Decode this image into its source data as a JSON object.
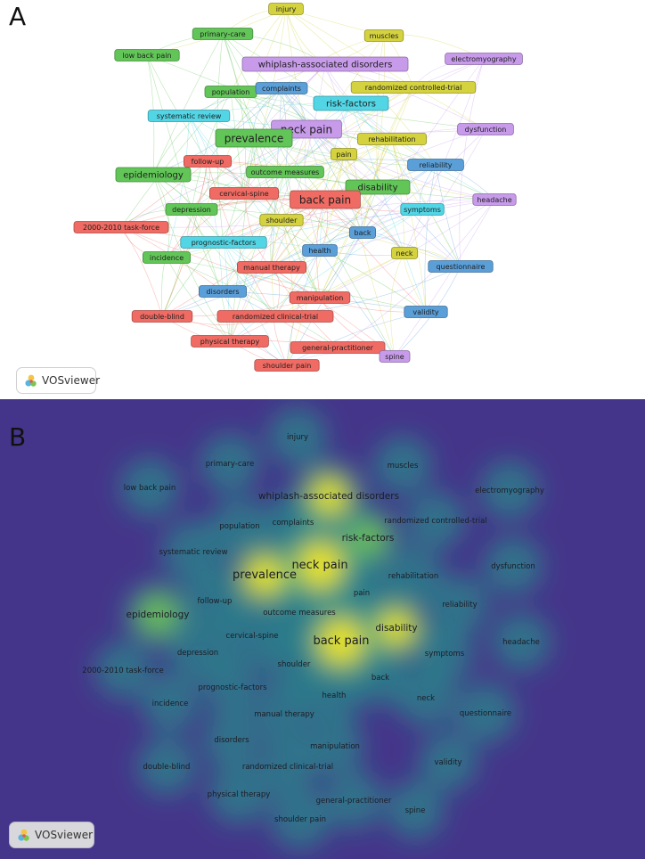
{
  "panel_a": {
    "letter": "A",
    "brand": "VOSviewer"
  },
  "panel_b": {
    "letter": "B",
    "brand": "VOSviewer"
  },
  "colors": {
    "red": "#f06b63",
    "green": "#62c558",
    "blue": "#5b9fd9",
    "yellow": "#d4d23e",
    "purple": "#c79aea",
    "cyan": "#52d6e6"
  },
  "nodes": [
    {
      "id": "injury",
      "label": "injury",
      "cluster": "yellow",
      "size": "s"
    },
    {
      "id": "primary-care",
      "label": "primary-care",
      "cluster": "green",
      "size": "s"
    },
    {
      "id": "muscles",
      "label": "muscles",
      "cluster": "yellow",
      "size": "s"
    },
    {
      "id": "low-back-pain",
      "label": "low back pain",
      "cluster": "green",
      "size": "s"
    },
    {
      "id": "whiplash",
      "label": "whiplash-associated disorders",
      "cluster": "purple",
      "size": "m"
    },
    {
      "id": "electromyography",
      "label": "electromyography",
      "cluster": "purple",
      "size": "s"
    },
    {
      "id": "population",
      "label": "population",
      "cluster": "green",
      "size": "s"
    },
    {
      "id": "complaints",
      "label": "complaints",
      "cluster": "blue",
      "size": "s"
    },
    {
      "id": "rct-controlled",
      "label": "randomized controlled-trial",
      "cluster": "yellow",
      "size": "s"
    },
    {
      "id": "risk-factors",
      "label": "risk-factors",
      "cluster": "cyan",
      "size": "m"
    },
    {
      "id": "systematic-review",
      "label": "systematic review",
      "cluster": "cyan",
      "size": "s"
    },
    {
      "id": "neck-pain",
      "label": "neck pain",
      "cluster": "purple",
      "size": "l"
    },
    {
      "id": "dysfunction",
      "label": "dysfunction",
      "cluster": "purple",
      "size": "s"
    },
    {
      "id": "prevalence",
      "label": "prevalence",
      "cluster": "green",
      "size": "l"
    },
    {
      "id": "rehabilitation",
      "label": "rehabilitation",
      "cluster": "yellow",
      "size": "s"
    },
    {
      "id": "pain",
      "label": "pain",
      "cluster": "yellow",
      "size": "s"
    },
    {
      "id": "follow-up",
      "label": "follow-up",
      "cluster": "red",
      "size": "s"
    },
    {
      "id": "reliability",
      "label": "reliability",
      "cluster": "blue",
      "size": "s"
    },
    {
      "id": "outcome-measures",
      "label": "outcome measures",
      "cluster": "green",
      "size": "s"
    },
    {
      "id": "epidemiology",
      "label": "epidemiology",
      "cluster": "green",
      "size": "m"
    },
    {
      "id": "disability",
      "label": "disability",
      "cluster": "green",
      "size": "m"
    },
    {
      "id": "cervical-spine",
      "label": "cervical-spine",
      "cluster": "red",
      "size": "s"
    },
    {
      "id": "back-pain",
      "label": "back pain",
      "cluster": "red",
      "size": "l"
    },
    {
      "id": "headache",
      "label": "headache",
      "cluster": "purple",
      "size": "s"
    },
    {
      "id": "depression",
      "label": "depression",
      "cluster": "green",
      "size": "s"
    },
    {
      "id": "symptoms",
      "label": "symptoms",
      "cluster": "cyan",
      "size": "s"
    },
    {
      "id": "task-force",
      "label": "2000-2010 task-force",
      "cluster": "red",
      "size": "s"
    },
    {
      "id": "shoulder",
      "label": "shoulder",
      "cluster": "yellow",
      "size": "s"
    },
    {
      "id": "back",
      "label": "back",
      "cluster": "blue",
      "size": "s"
    },
    {
      "id": "prognostic-factors",
      "label": "prognostic-factors",
      "cluster": "cyan",
      "size": "s"
    },
    {
      "id": "health",
      "label": "health",
      "cluster": "blue",
      "size": "s"
    },
    {
      "id": "incidence",
      "label": "incidence",
      "cluster": "green",
      "size": "s"
    },
    {
      "id": "neck",
      "label": "neck",
      "cluster": "yellow",
      "size": "s"
    },
    {
      "id": "manual-therapy",
      "label": "manual therapy",
      "cluster": "red",
      "size": "s"
    },
    {
      "id": "questionnaire",
      "label": "questionnaire",
      "cluster": "blue",
      "size": "s"
    },
    {
      "id": "disorders",
      "label": "disorders",
      "cluster": "blue",
      "size": "s"
    },
    {
      "id": "manipulation",
      "label": "manipulation",
      "cluster": "red",
      "size": "s"
    },
    {
      "id": "double-blind",
      "label": "double-blind",
      "cluster": "red",
      "size": "s"
    },
    {
      "id": "rct-clinical",
      "label": "randomized clinical-trial",
      "cluster": "red",
      "size": "s"
    },
    {
      "id": "validity",
      "label": "validity",
      "cluster": "blue",
      "size": "s"
    },
    {
      "id": "physical-therapy",
      "label": "physical therapy",
      "cluster": "red",
      "size": "s"
    },
    {
      "id": "general-practitioner",
      "label": "general-practitioner",
      "cluster": "red",
      "size": "s"
    },
    {
      "id": "spine",
      "label": "spine",
      "cluster": "purple",
      "size": "s"
    },
    {
      "id": "shoulder-pain",
      "label": "shoulder pain",
      "cluster": "red",
      "size": "s"
    }
  ],
  "density": [
    {
      "id": "neck-pain",
      "v": 1.0
    },
    {
      "id": "back-pain",
      "v": 0.95
    },
    {
      "id": "prevalence",
      "v": 0.7
    },
    {
      "id": "whiplash",
      "v": 0.65
    },
    {
      "id": "disability",
      "v": 0.6
    },
    {
      "id": "epidemiology",
      "v": 0.5
    },
    {
      "id": "risk-factors",
      "v": 0.45
    },
    {
      "id": "systematic-review",
      "v": 0.4
    },
    {
      "id": "follow-up",
      "v": 0.35
    },
    {
      "id": "cervical-spine",
      "v": 0.35
    },
    {
      "id": "questionnaire",
      "v": 0.35
    },
    {
      "id": "symptoms",
      "v": 0.3
    },
    {
      "id": "shoulder-pain",
      "v": 0.35
    },
    {
      "id": "physical-therapy",
      "v": 0.35
    },
    {
      "id": "rct-clinical",
      "v": 0.3
    },
    {
      "id": "double-blind",
      "v": 0.3
    },
    {
      "id": "neck",
      "v": 0.3
    },
    {
      "id": "headache",
      "v": 0.3
    },
    {
      "id": "dysfunction",
      "v": 0.3
    },
    {
      "id": "electromyography",
      "v": 0.3
    },
    {
      "id": "reliability",
      "v": 0.28
    },
    {
      "id": "injury",
      "v": 0.3
    },
    {
      "id": "muscles",
      "v": 0.28
    },
    {
      "id": "primary-care",
      "v": 0.3
    },
    {
      "id": "low-back-pain",
      "v": 0.3
    },
    {
      "id": "depression",
      "v": 0.3
    },
    {
      "id": "task-force",
      "v": 0.25
    },
    {
      "id": "incidence",
      "v": 0.28
    },
    {
      "id": "disorders",
      "v": 0.28
    },
    {
      "id": "validity",
      "v": 0.28
    },
    {
      "id": "spine",
      "v": 0.28
    },
    {
      "id": "general-practitioner",
      "v": 0.28
    },
    {
      "id": "manipulation",
      "v": 0.28
    },
    {
      "id": "manual-therapy",
      "v": 0.3
    },
    {
      "id": "prognostic-factors",
      "v": 0.25
    },
    {
      "id": "population",
      "v": 0.25
    },
    {
      "id": "complaints",
      "v": 0.3
    },
    {
      "id": "rehabilitation",
      "v": 0.3
    },
    {
      "id": "outcome-measures",
      "v": 0.3
    },
    {
      "id": "shoulder",
      "v": 0.3
    },
    {
      "id": "health",
      "v": 0.25
    },
    {
      "id": "back",
      "v": 0.25
    },
    {
      "id": "pain",
      "v": 0.28
    },
    {
      "id": "rct-controlled",
      "v": 0.28
    }
  ]
}
